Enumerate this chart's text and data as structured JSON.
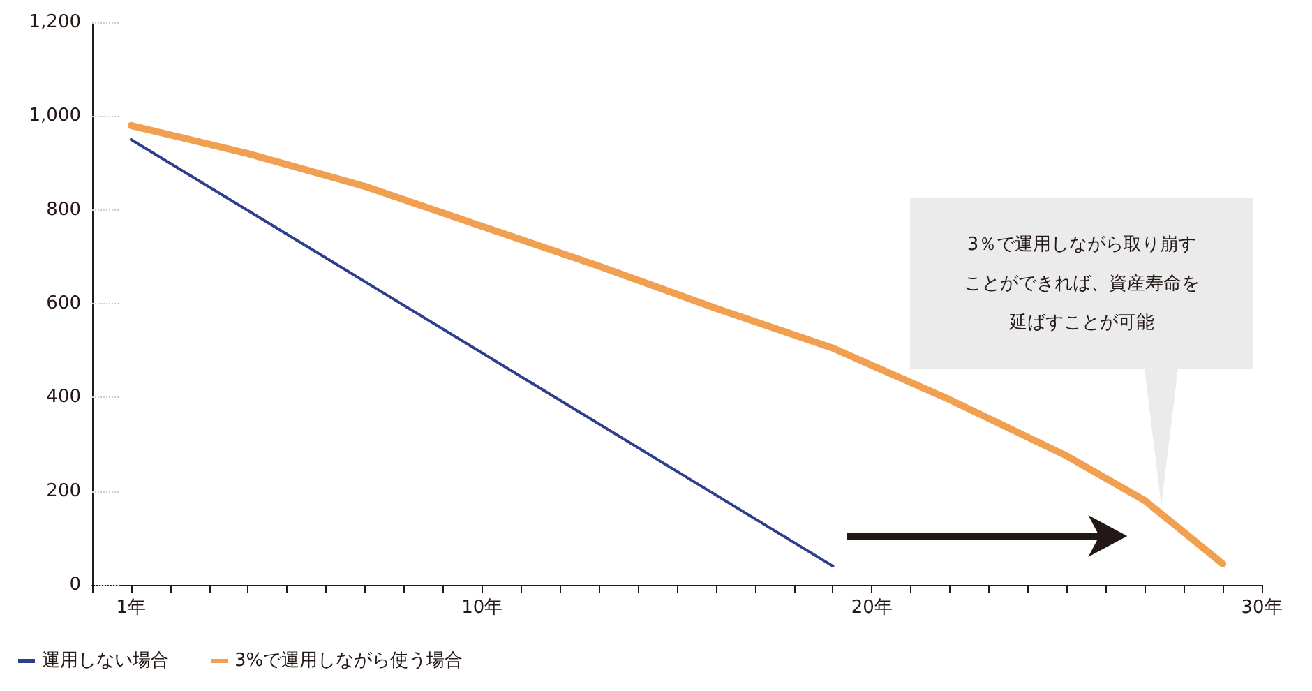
{
  "chart_data": {
    "type": "line",
    "series": [
      {
        "name": "運用しない場合",
        "color": "#2e3d8c",
        "x": [
          1,
          19
        ],
        "values": [
          950,
          40
        ]
      },
      {
        "name": "3%で運用しながら使う場合",
        "color": "#f0a050",
        "x": [
          1,
          4,
          7,
          10,
          13,
          16,
          19,
          22,
          25,
          27,
          29
        ],
        "values": [
          980,
          920,
          850,
          765,
          680,
          590,
          505,
          395,
          275,
          180,
          45
        ]
      }
    ],
    "xlim": [
      0,
      30
    ],
    "xticks": [
      {
        "value": 0,
        "label": null
      },
      {
        "value": 1,
        "label": "1年"
      },
      {
        "value": 2,
        "label": null
      },
      {
        "value": 3,
        "label": null
      },
      {
        "value": 4,
        "label": null
      },
      {
        "value": 5,
        "label": null
      },
      {
        "value": 6,
        "label": null
      },
      {
        "value": 7,
        "label": null
      },
      {
        "value": 8,
        "label": null
      },
      {
        "value": 9,
        "label": null
      },
      {
        "value": 10,
        "label": "10年"
      },
      {
        "value": 11,
        "label": null
      },
      {
        "value": 12,
        "label": null
      },
      {
        "value": 13,
        "label": null
      },
      {
        "value": 14,
        "label": null
      },
      {
        "value": 15,
        "label": null
      },
      {
        "value": 16,
        "label": null
      },
      {
        "value": 17,
        "label": null
      },
      {
        "value": 18,
        "label": null
      },
      {
        "value": 19,
        "label": null
      },
      {
        "value": 20,
        "label": "20年"
      },
      {
        "value": 21,
        "label": null
      },
      {
        "value": 22,
        "label": null
      },
      {
        "value": 23,
        "label": null
      },
      {
        "value": 24,
        "label": null
      },
      {
        "value": 25,
        "label": null
      },
      {
        "value": 26,
        "label": null
      },
      {
        "value": 27,
        "label": null
      },
      {
        "value": 28,
        "label": null
      },
      {
        "value": 29,
        "label": null
      },
      {
        "value": 30,
        "label": "30年"
      }
    ],
    "ylim": [
      0,
      1200
    ],
    "yticks": [
      0,
      200,
      400,
      600,
      800,
      {
        "value": 1000,
        "label": "1,000"
      },
      {
        "value": 1200,
        "label": "1,200"
      }
    ],
    "annotations": [
      "3％で運用しながら取り崩すことができれば、資産寿命を延ばすことが可能"
    ],
    "grid": false,
    "legend": "bottom left",
    "marker": "none",
    "line_style": "solid"
  }
}
